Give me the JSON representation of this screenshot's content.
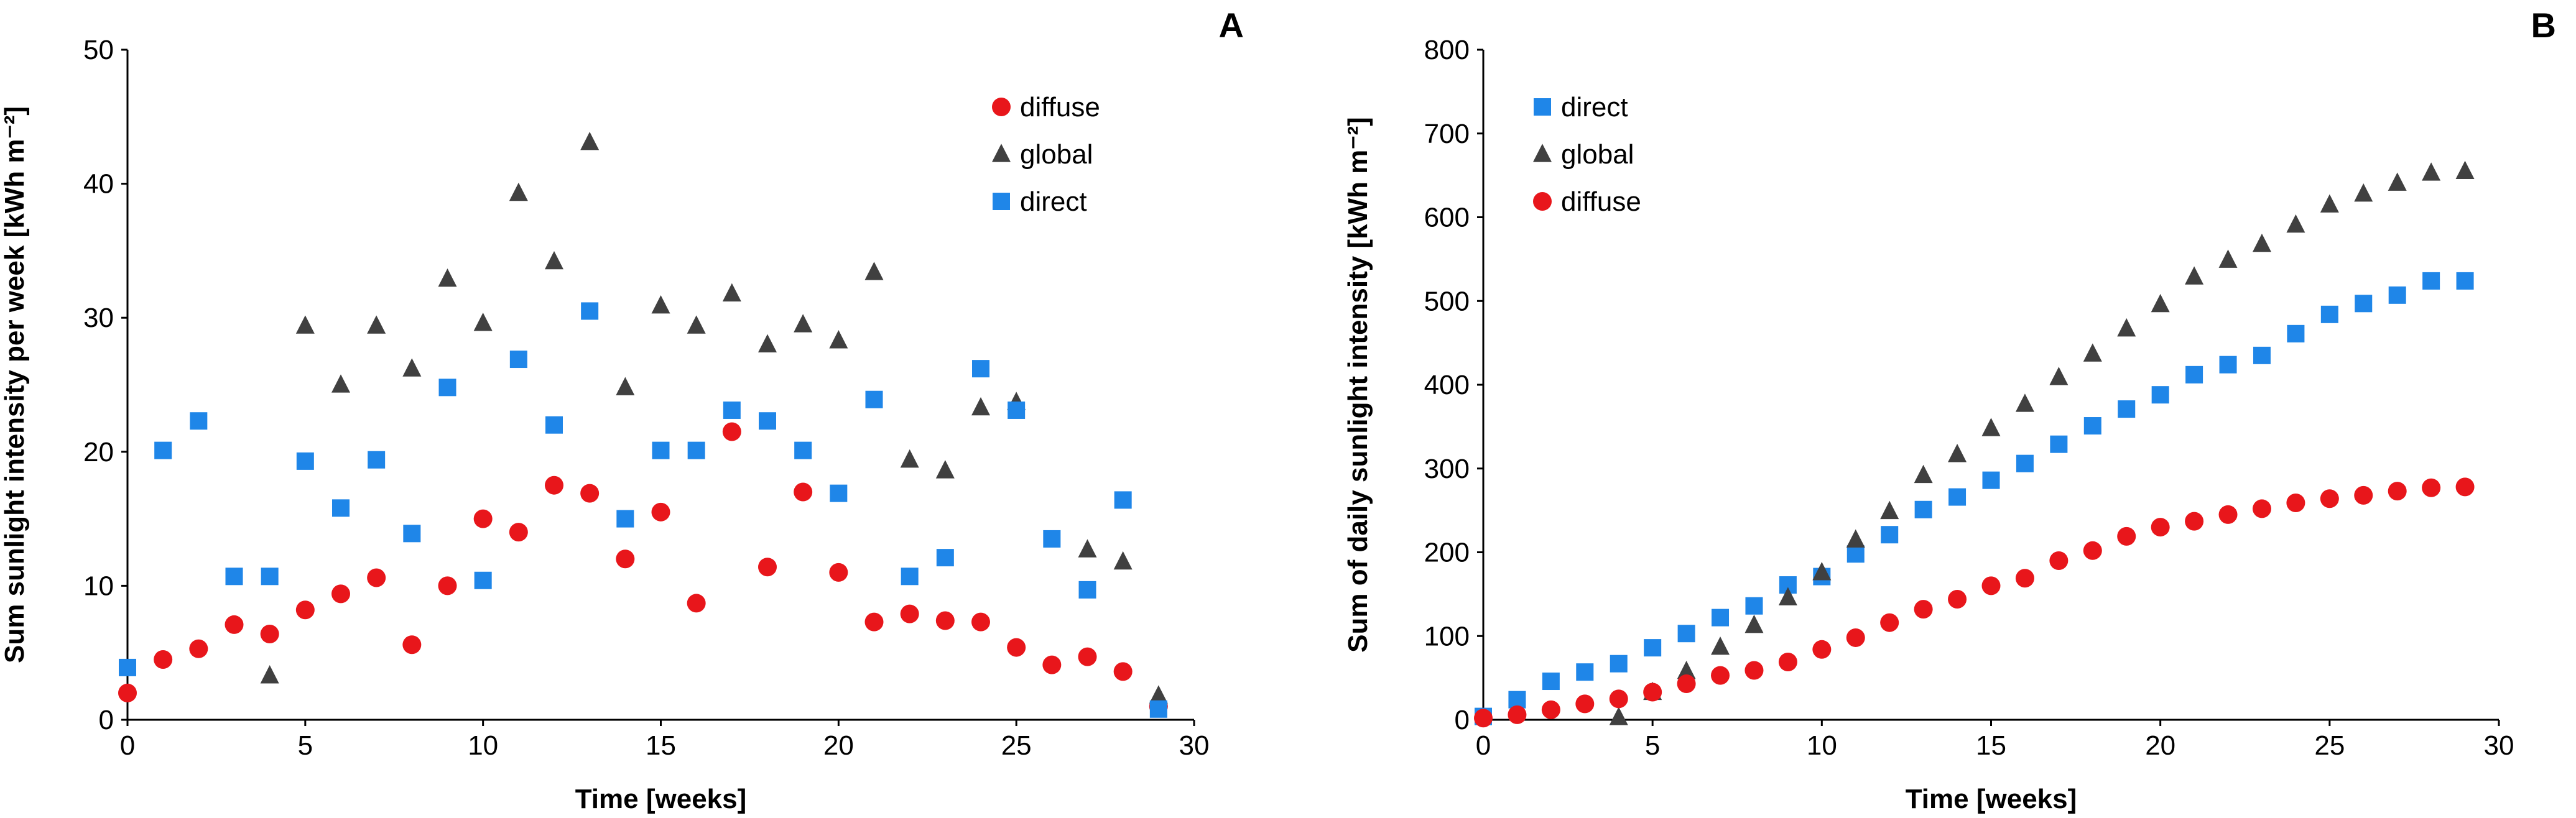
{
  "chart_data": [
    {
      "panel_label": "A",
      "type": "scatter",
      "title": "",
      "xlabel": "Time [weeks]",
      "ylabel": "Sum sunlight intensity per week [kWh m⁻²]",
      "xlim": [
        0,
        30
      ],
      "ylim": [
        0,
        50
      ],
      "xticks": [
        0,
        5,
        10,
        15,
        20,
        25,
        30
      ],
      "yticks": [
        0,
        10,
        20,
        30,
        40,
        50
      ],
      "grid": false,
      "legend_position": "top-right",
      "legend_order": [
        "diffuse",
        "global",
        "direct"
      ],
      "series": [
        {
          "name": "diffuse",
          "marker": "circle",
          "color": "#e8161b",
          "x": [
            0,
            1,
            2,
            3,
            4,
            5,
            6,
            7,
            8,
            9,
            10,
            11,
            12,
            13,
            14,
            15,
            16,
            17,
            18,
            19,
            20,
            21,
            22,
            23,
            24,
            25,
            26,
            27,
            28,
            29
          ],
          "y": [
            2.0,
            4.5,
            5.3,
            7.1,
            6.4,
            8.2,
            9.4,
            10.6,
            5.6,
            10.0,
            15.0,
            14.0,
            17.5,
            16.9,
            12.0,
            15.5,
            8.7,
            21.5,
            11.4,
            17.0,
            11.0,
            7.3,
            7.9,
            7.4,
            7.3,
            5.4,
            4.1,
            4.7,
            3.6,
            1.0
          ]
        },
        {
          "name": "global",
          "marker": "triangle",
          "color": "#404040",
          "x": [
            4,
            5,
            6,
            7,
            8,
            9,
            10,
            11,
            12,
            13,
            14,
            15,
            16,
            17,
            18,
            19,
            20,
            21,
            22,
            23,
            24,
            25,
            27,
            28,
            29
          ],
          "y": [
            3.3,
            29.4,
            25.0,
            29.4,
            26.2,
            32.9,
            29.6,
            39.3,
            34.2,
            43.1,
            24.8,
            30.9,
            29.4,
            31.8,
            28.0,
            29.5,
            28.3,
            33.4,
            19.4,
            18.6,
            23.3,
            23.7,
            12.7,
            11.8,
            1.8
          ]
        },
        {
          "name": "direct",
          "marker": "square",
          "color": "#1f86e8",
          "x": [
            0,
            1,
            2,
            3,
            4,
            5,
            6,
            7,
            8,
            9,
            10,
            11,
            12,
            13,
            14,
            15,
            16,
            17,
            18,
            19,
            20,
            21,
            22,
            23,
            24,
            25,
            26,
            27,
            28,
            29
          ],
          "y": [
            3.9,
            20.1,
            22.3,
            10.7,
            10.7,
            19.3,
            15.8,
            19.4,
            13.9,
            24.8,
            10.4,
            26.9,
            22.0,
            30.5,
            15.0,
            20.1,
            20.1,
            23.1,
            22.3,
            20.1,
            16.9,
            23.9,
            10.7,
            12.1,
            26.2,
            23.1,
            13.5,
            9.7,
            16.4,
            0.8
          ]
        }
      ]
    },
    {
      "panel_label": "B",
      "type": "scatter",
      "title": "",
      "xlabel": "Time [weeks]",
      "ylabel": "Sum of daily sunlight intensity [kWh m⁻²]",
      "xlim": [
        0,
        30
      ],
      "ylim": [
        0,
        800
      ],
      "xticks": [
        0,
        5,
        10,
        15,
        20,
        25,
        30
      ],
      "yticks": [
        0,
        100,
        200,
        300,
        400,
        500,
        600,
        700,
        800
      ],
      "grid": false,
      "legend_position": "top-left",
      "legend_order": [
        "direct",
        "global",
        "diffuse"
      ],
      "series": [
        {
          "name": "direct",
          "marker": "square",
          "color": "#1f86e8",
          "x": [
            0,
            1,
            2,
            3,
            4,
            5,
            6,
            7,
            8,
            9,
            10,
            11,
            12,
            13,
            14,
            15,
            16,
            17,
            18,
            19,
            20,
            21,
            22,
            23,
            24,
            25,
            26,
            27,
            28,
            29
          ],
          "y": [
            4,
            24,
            46,
            57,
            67,
            86,
            103,
            122,
            136,
            161,
            171,
            198,
            221,
            251,
            266,
            286,
            306,
            329,
            351,
            371,
            388,
            412,
            424,
            435,
            461,
            484,
            497,
            507,
            524,
            524
          ]
        },
        {
          "name": "global",
          "marker": "triangle",
          "color": "#404040",
          "x": [
            4,
            5,
            6,
            7,
            8,
            9,
            10,
            11,
            12,
            13,
            14,
            15,
            16,
            17,
            18,
            19,
            20,
            21,
            22,
            23,
            24,
            25,
            26,
            27,
            28,
            29
          ],
          "y": [
            3,
            33,
            58,
            87,
            113,
            146,
            176,
            215,
            249,
            292,
            317,
            348,
            377,
            409,
            437,
            467,
            496,
            529,
            549,
            568,
            591,
            615,
            628,
            641,
            653,
            655
          ]
        },
        {
          "name": "diffuse",
          "marker": "circle",
          "color": "#e8161b",
          "x": [
            0,
            1,
            2,
            3,
            4,
            5,
            6,
            7,
            8,
            9,
            10,
            11,
            12,
            13,
            14,
            15,
            16,
            17,
            18,
            19,
            20,
            21,
            22,
            23,
            24,
            25,
            26,
            27,
            28,
            29
          ],
          "y": [
            2,
            6,
            12,
            19,
            25,
            33,
            43,
            53,
            59,
            69,
            84,
            98,
            116,
            132,
            144,
            160,
            169,
            190,
            202,
            219,
            230,
            237,
            245,
            252,
            259,
            264,
            268,
            273,
            277,
            278
          ]
        }
      ]
    }
  ]
}
